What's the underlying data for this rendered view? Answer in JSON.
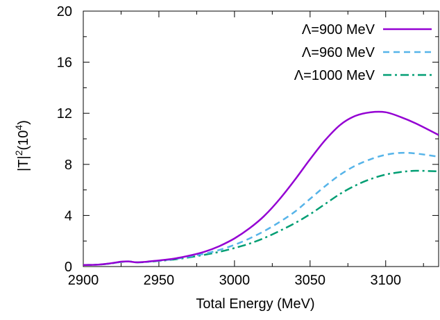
{
  "chart_data": {
    "type": "line",
    "xlabel": "Total Energy (MeV)",
    "ylabel": "|T|²(10⁴)",
    "ylabel_parts": {
      "base": "|T|",
      "sq": "2",
      "mid": "(10",
      "exp": "4",
      "end": ")"
    },
    "xlim": [
      2900,
      3135
    ],
    "ylim": [
      0,
      20
    ],
    "xticks": [
      2900,
      2950,
      3000,
      3050,
      3100
    ],
    "yticks": [
      0,
      4,
      8,
      12,
      16,
      20
    ],
    "grid": false,
    "legend_position": "top-right",
    "series": [
      {
        "name": "Λ=900 MeV",
        "color": "#9400d3",
        "dash": "solid",
        "x": [
          2900,
          2910,
          2918,
          2925,
          2930,
          2935,
          2940,
          2945,
          2950,
          2960,
          2970,
          2980,
          2990,
          3000,
          3010,
          3020,
          3030,
          3040,
          3050,
          3060,
          3070,
          3080,
          3090,
          3100,
          3110,
          3120,
          3135
        ],
        "y": [
          0.12,
          0.15,
          0.25,
          0.38,
          0.4,
          0.33,
          0.36,
          0.42,
          0.48,
          0.62,
          0.85,
          1.15,
          1.6,
          2.2,
          3.0,
          4.0,
          5.3,
          6.8,
          8.4,
          9.9,
          11.1,
          11.8,
          12.08,
          12.08,
          11.7,
          11.2,
          10.3
        ]
      },
      {
        "name": "Λ=960 MeV",
        "color": "#56b4e9",
        "dash": "dashed",
        "x": [
          2900,
          2910,
          2918,
          2925,
          2930,
          2935,
          2940,
          2945,
          2950,
          2960,
          2970,
          2980,
          2990,
          3000,
          3010,
          3020,
          3030,
          3040,
          3050,
          3060,
          3070,
          3080,
          3090,
          3100,
          3110,
          3120,
          3135
        ],
        "y": [
          0.12,
          0.15,
          0.24,
          0.36,
          0.4,
          0.33,
          0.34,
          0.4,
          0.45,
          0.58,
          0.78,
          1.0,
          1.3,
          1.7,
          2.2,
          2.8,
          3.5,
          4.3,
          5.3,
          6.3,
          7.2,
          7.9,
          8.4,
          8.75,
          8.9,
          8.85,
          8.6
        ]
      },
      {
        "name": "Λ=1000 MeV",
        "color": "#009e73",
        "dash": "dashdot",
        "x": [
          2900,
          2910,
          2918,
          2925,
          2930,
          2935,
          2940,
          2945,
          2950,
          2960,
          2970,
          2980,
          2990,
          3000,
          3010,
          3020,
          3030,
          3040,
          3050,
          3060,
          3070,
          3080,
          3090,
          3100,
          3110,
          3120,
          3135
        ],
        "y": [
          0.12,
          0.15,
          0.24,
          0.36,
          0.4,
          0.33,
          0.34,
          0.39,
          0.44,
          0.55,
          0.72,
          0.92,
          1.15,
          1.45,
          1.8,
          2.25,
          2.8,
          3.4,
          4.1,
          4.9,
          5.7,
          6.35,
          6.85,
          7.2,
          7.4,
          7.5,
          7.45
        ]
      }
    ]
  }
}
